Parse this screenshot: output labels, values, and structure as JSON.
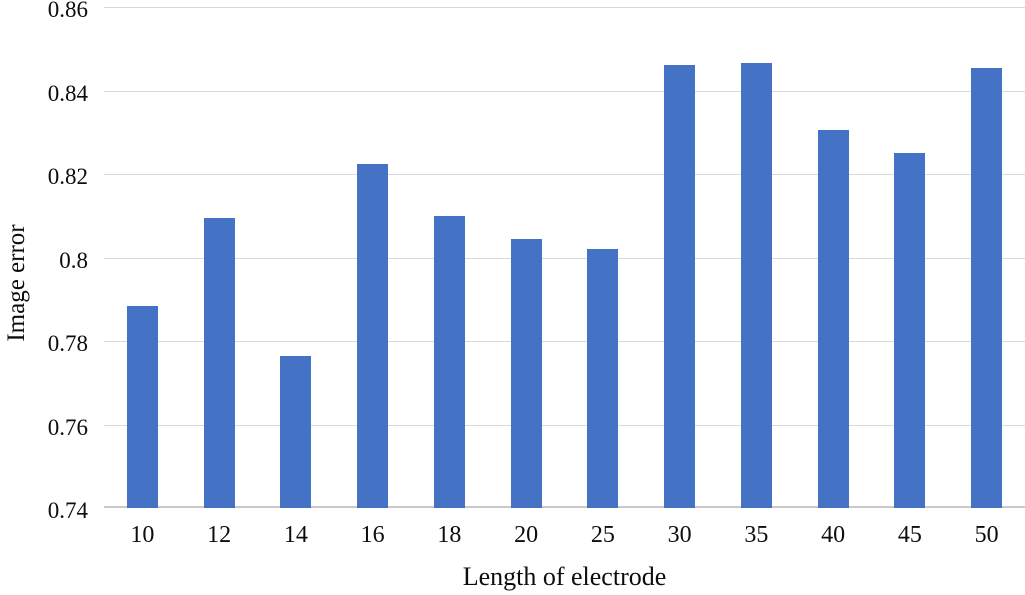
{
  "chart_data": {
    "type": "bar",
    "title": "",
    "xlabel": "Length of electrode",
    "ylabel": "Image error",
    "categories": [
      "10",
      "12",
      "14",
      "16",
      "18",
      "20",
      "25",
      "30",
      "35",
      "40",
      "45",
      "50"
    ],
    "values": [
      0.7885,
      0.8095,
      0.7765,
      0.8225,
      0.81,
      0.8045,
      0.802,
      0.846,
      0.8465,
      0.8305,
      0.825,
      0.8455
    ],
    "ylim": [
      0.74,
      0.86
    ],
    "ytick_labels": [
      "0.74",
      "0.76",
      "0.78",
      "0.8",
      "0.82",
      "0.84",
      "0.86"
    ],
    "grid": "horizontal",
    "legend": "none",
    "colors": {
      "bar": "#4472C4",
      "gridline": "#D9D9D9",
      "axis_line": "#C9C9C9",
      "text": "#0D0D0D",
      "background": "#FFFFFF"
    }
  }
}
